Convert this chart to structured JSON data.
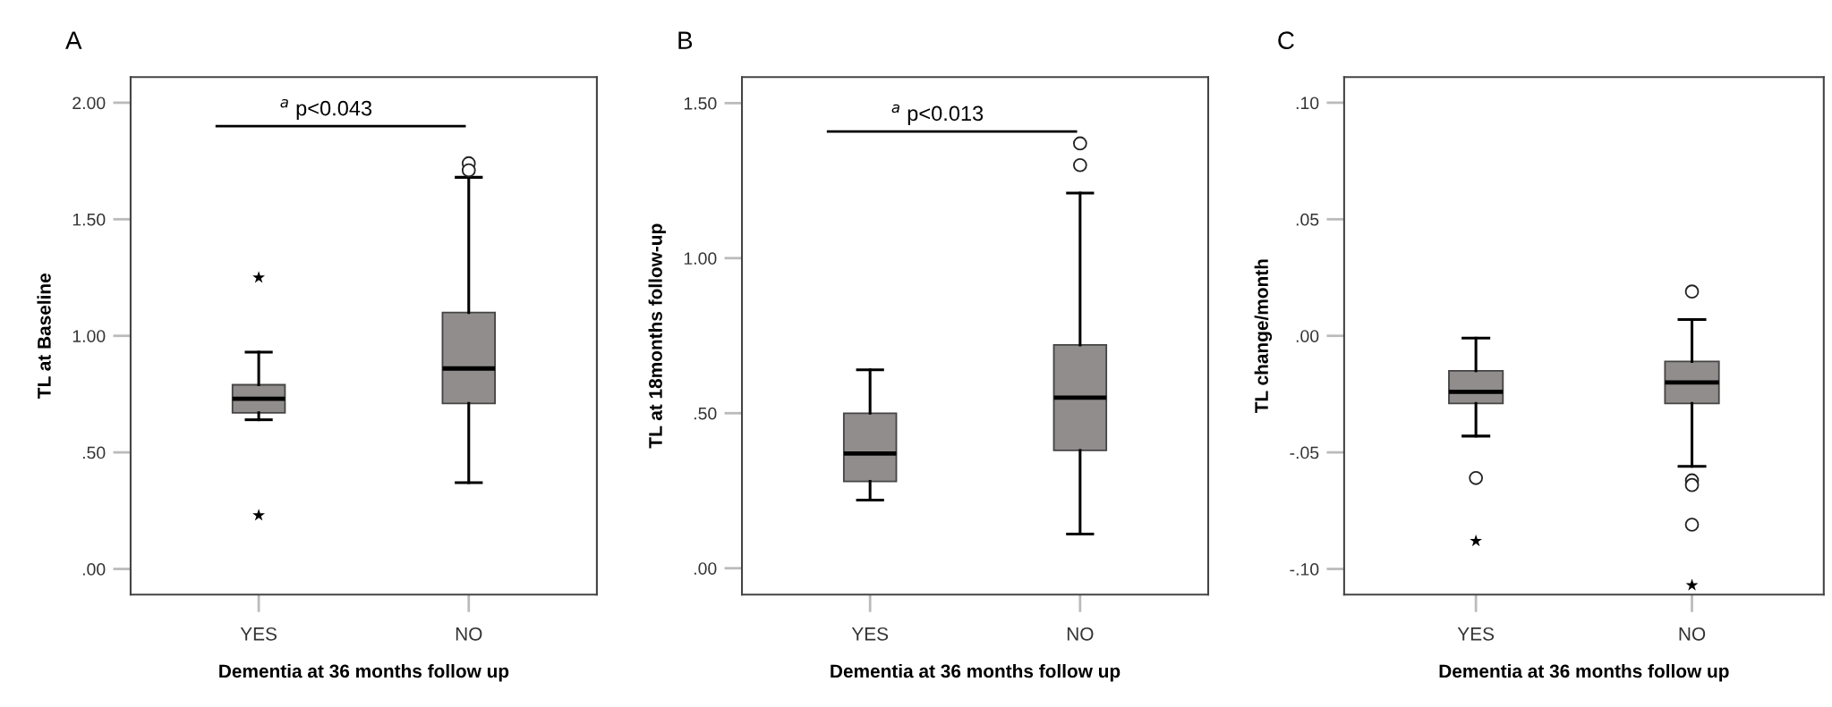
{
  "chart_data": [
    {
      "type": "box",
      "title": "A",
      "xlabel": "Dementia at 36 months follow up",
      "ylabel": "TL at Baseline",
      "categories": [
        "YES",
        "NO"
      ],
      "colors": [
        "#918d8c",
        "#918d8c"
      ],
      "boxes": [
        {
          "low": 0.64,
          "q1": 0.67,
          "median": 0.73,
          "q3": 0.79,
          "high": 0.93
        },
        {
          "low": 0.37,
          "q1": 0.71,
          "median": 0.86,
          "q3": 1.1,
          "high": 1.68,
          "outliers": [
            1.74,
            1.71
          ]
        }
      ],
      "series": [
        {
          "type": "scatter",
          "marker": "star",
          "color": "#000000",
          "x": [
            "YES",
            "YES"
          ],
          "values": [
            1.25,
            0.23
          ]
        }
      ],
      "ylim": [
        -0.11,
        2.11
      ],
      "yticks": [
        {
          "value": 0,
          "label": ".00"
        },
        {
          "value": 0.5,
          "label": ".50"
        },
        {
          "value": 1,
          "label": "1.00"
        },
        {
          "value": 1.5,
          "label": "1.50"
        },
        {
          "value": 2,
          "label": "2.00"
        }
      ],
      "annotations": [
        "$^{a}$ p<0.043"
      ]
    },
    {
      "type": "box",
      "title": "B",
      "xlabel": "Dementia at 36 months follow up",
      "ylabel": "TL at 18months follow-up",
      "categories": [
        "YES",
        "NO"
      ],
      "colors": [
        "#918d8c",
        "#918d8c"
      ],
      "boxes": [
        {
          "low": 0.22,
          "q1": 0.28,
          "median": 0.37,
          "q3": 0.5,
          "high": 0.64
        },
        {
          "low": 0.11,
          "q1": 0.38,
          "median": 0.55,
          "q3": 0.72,
          "high": 1.21,
          "outliers": [
            1.37,
            1.3
          ]
        }
      ],
      "ylim": [
        -0.085,
        1.584
      ],
      "yticks": [
        {
          "value": 0,
          "label": ".00"
        },
        {
          "value": 0.5,
          "label": ".50"
        },
        {
          "value": 1,
          "label": "1.00"
        },
        {
          "value": 1.5,
          "label": "1.50"
        }
      ],
      "annotations": [
        "$^{a}$ p<0.013"
      ]
    },
    {
      "type": "box",
      "title": "C",
      "xlabel": "Dementia at 36 months follow up",
      "ylabel": "TL change/month",
      "categories": [
        "YES",
        "NO"
      ],
      "colors": [
        "#918d8c",
        "#918d8c"
      ],
      "boxes": [
        {
          "low": -0.043,
          "q1": -0.029,
          "median": -0.024,
          "q3": -0.015,
          "high": -0.001,
          "outliers": [
            -0.061
          ]
        },
        {
          "low": -0.056,
          "q1": -0.029,
          "median": -0.02,
          "q3": -0.011,
          "high": 0.007,
          "outliers": [
            0.019,
            -0.062,
            -0.064,
            -0.081
          ]
        }
      ],
      "series": [
        {
          "type": "scatter",
          "marker": "star",
          "color": "#000000",
          "x": [
            "YES",
            "NO"
          ],
          "values": [
            -0.088,
            -0.107
          ]
        }
      ],
      "ylim": [
        -0.111,
        0.111
      ],
      "yticks": [
        {
          "value": -0.1,
          "label": "-.10"
        },
        {
          "value": -0.05,
          "label": "-.05"
        },
        {
          "value": 0,
          "label": ".00"
        },
        {
          "value": 0.05,
          "label": ".05"
        },
        {
          "value": 0.1,
          "label": ".10"
        }
      ]
    }
  ]
}
